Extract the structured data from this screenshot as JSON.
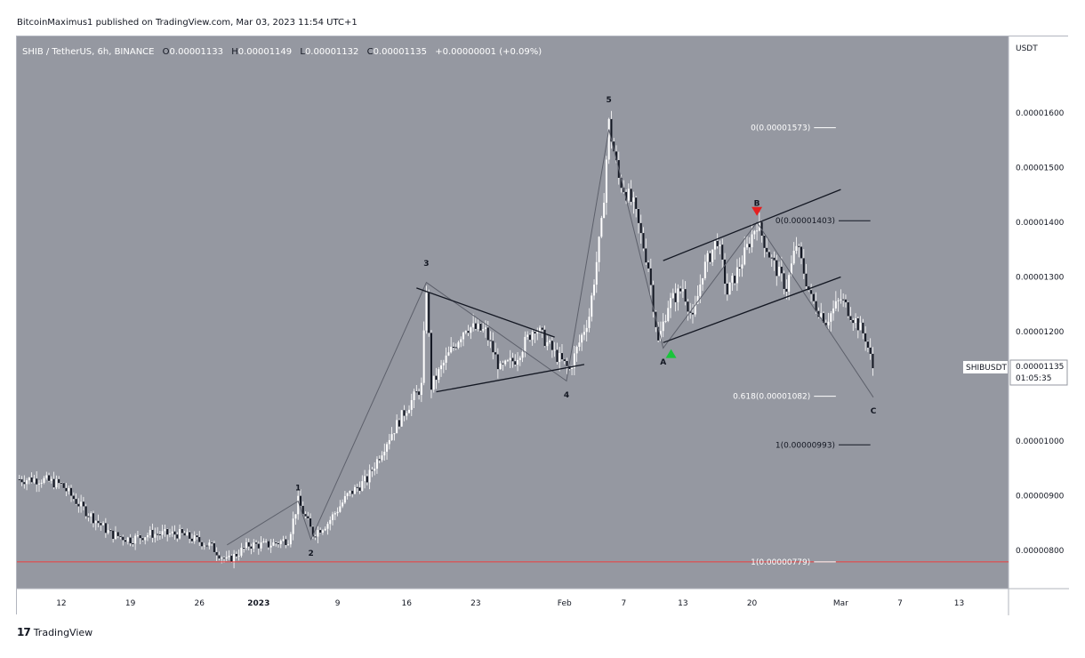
{
  "publisher_line": "BitcoinMaximus1 published on TradingView.com, Mar 03, 2023 11:54 UTC+1",
  "footer_brand": "TradingView",
  "colors": {
    "plot_bg": "#9598a1",
    "candle": "#ffffff",
    "trendline": "#131722",
    "wave_path": "#5d606b",
    "support": "#ef3d3d",
    "fib_line": "#ffffff",
    "up_arrow": "#19c43a",
    "down_arrow": "#e52020"
  },
  "chart_data": {
    "type": "candlestick",
    "symbol_header": {
      "pair": "SHIB / TetherUS, 6h, BINANCE",
      "o_label": "O",
      "o_value": "0.00001133",
      "h_label": "H",
      "h_value": "0.00001149",
      "l_label": "L",
      "l_value": "0.00001132",
      "c_label": "C",
      "c_value": "0.00001135",
      "change": "+0.00000001 (+0.09%)"
    },
    "y_axis": {
      "unit": "USDT",
      "range": [
        7.3e-06,
        1.74e-05
      ],
      "ticks": [
        {
          "value": 1.6e-05,
          "label": "0.00001600"
        },
        {
          "value": 1.5e-05,
          "label": "0.00001500"
        },
        {
          "value": 1.4e-05,
          "label": "0.00001400"
        },
        {
          "value": 1.3e-05,
          "label": "0.00001300"
        },
        {
          "value": 1.2e-05,
          "label": "0.00001200"
        },
        {
          "value": 1e-05,
          "label": "0.00001000"
        },
        {
          "value": 9e-06,
          "label": "0.00000900"
        },
        {
          "value": 8e-06,
          "label": "0.00000800"
        }
      ]
    },
    "x_axis": {
      "range_days": [
        -24.5,
        76
      ],
      "ticks": [
        {
          "day": -20,
          "label": "12"
        },
        {
          "day": -13,
          "label": "19"
        },
        {
          "day": -6,
          "label": "26"
        },
        {
          "day": 0,
          "label": "2023"
        },
        {
          "day": 8,
          "label": "9"
        },
        {
          "day": 15,
          "label": "16"
        },
        {
          "day": 22,
          "label": "23"
        },
        {
          "day": 31,
          "label": "Feb"
        },
        {
          "day": 37,
          "label": "7"
        },
        {
          "day": 43,
          "label": "13"
        },
        {
          "day": 50,
          "label": "20"
        },
        {
          "day": 59,
          "label": "Mar"
        },
        {
          "day": 65,
          "label": "7"
        },
        {
          "day": 71,
          "label": "13"
        }
      ]
    },
    "price_path": [
      [
        -24.5,
        9.3e-06
      ],
      [
        -22,
        9.3e-06
      ],
      [
        -20,
        9.2e-06
      ],
      [
        -18,
        8.8e-06
      ],
      [
        -15,
        8.3e-06
      ],
      [
        -13,
        8.2e-06
      ],
      [
        -11,
        8.3e-06
      ],
      [
        -8,
        8.3e-06
      ],
      [
        -5,
        8.1e-06
      ],
      [
        -3.2,
        7.8e-06
      ],
      [
        -1,
        8.1e-06
      ],
      [
        1,
        8.1e-06
      ],
      [
        3,
        8.2e-06
      ],
      [
        4,
        8.9e-06
      ],
      [
        5.5,
        8.3e-06
      ],
      [
        7,
        8.5e-06
      ],
      [
        9,
        9e-06
      ],
      [
        11,
        9.3e-06
      ],
      [
        13,
        1e-05
      ],
      [
        15,
        1.06e-05
      ],
      [
        16.5,
        1.1e-05
      ],
      [
        17,
        1.28e-05
      ],
      [
        17.5,
        1.1e-05
      ],
      [
        19,
        1.15e-05
      ],
      [
        21,
        1.21e-05
      ],
      [
        23,
        1.2e-05
      ],
      [
        24.5,
        1.13e-05
      ],
      [
        26,
        1.15e-05
      ],
      [
        28,
        1.21e-05
      ],
      [
        30,
        1.16e-05
      ],
      [
        31.5,
        1.13e-05
      ],
      [
        32.5,
        1.18e-05
      ],
      [
        33.5,
        1.23e-05
      ],
      [
        34.8,
        1.4e-05
      ],
      [
        35.5,
        1.58e-05
      ],
      [
        36.5,
        1.48e-05
      ],
      [
        38,
        1.43e-05
      ],
      [
        39.5,
        1.32e-05
      ],
      [
        40.5,
        1.18e-05
      ],
      [
        41.5,
        1.25e-05
      ],
      [
        43,
        1.28e-05
      ],
      [
        44,
        1.22e-05
      ],
      [
        45,
        1.31e-05
      ],
      [
        46.5,
        1.37e-05
      ],
      [
        47.5,
        1.27e-05
      ],
      [
        49,
        1.33e-05
      ],
      [
        50.5,
        1.4e-05
      ],
      [
        52,
        1.33e-05
      ],
      [
        53.5,
        1.28e-05
      ],
      [
        54.5,
        1.36e-05
      ],
      [
        56,
        1.26e-05
      ],
      [
        57.5,
        1.22e-05
      ],
      [
        59,
        1.26e-05
      ],
      [
        60.5,
        1.22e-05
      ],
      [
        61.5,
        1.19e-05
      ],
      [
        62.3,
        1.13e-05
      ]
    ],
    "series": [
      {
        "name": "SHIBUSDT",
        "last_value": "0.00001135",
        "countdown": "01:05:35"
      }
    ],
    "trendlines": [
      [
        [
          16,
          1.28e-05
        ],
        [
          30,
          1.19e-05
        ]
      ],
      [
        [
          18,
          1.09e-05
        ],
        [
          33,
          1.14e-05
        ]
      ],
      [
        [
          41,
          1.33e-05
        ],
        [
          59,
          1.46e-05
        ]
      ],
      [
        [
          41,
          1.18e-05
        ],
        [
          59,
          1.3e-05
        ]
      ]
    ],
    "wave_path": [
      [
        -3.2,
        8.1e-06
      ],
      [
        4,
        8.9e-06
      ],
      [
        5.3,
        8.2e-06
      ],
      [
        17,
        1.29e-05
      ],
      [
        31.2,
        1.11e-05
      ],
      [
        35.5,
        1.57e-05
      ],
      [
        41,
        1.17e-05
      ],
      [
        50.5,
        1.4e-05
      ],
      [
        62.3,
        1.08e-05
      ]
    ],
    "support_line": 7.79e-06,
    "fib_levels": [
      {
        "label": "0(0.00001573)",
        "value": 1.573e-05,
        "x0": 52.5,
        "x1": 58.5
      },
      {
        "label": "0(0.00001403)",
        "value": 1.403e-05,
        "x0": 55,
        "x1": 62
      },
      {
        "label": "0.618(0.00001082)",
        "value": 1.082e-05,
        "x0": 52.5,
        "x1": 58.5
      },
      {
        "label": "1(0.00000993)",
        "value": 9.93e-06,
        "x0": 55,
        "x1": 62
      },
      {
        "label": "1(0.00000779)",
        "value": 7.79e-06,
        "x0": 52.5,
        "x1": 58.5
      }
    ],
    "wave_labels": [
      {
        "text": "1",
        "x": 4,
        "y": 9.1e-06
      },
      {
        "text": "2",
        "x": 5.3,
        "y": 7.9e-06
      },
      {
        "text": "3",
        "x": 17,
        "y": 1.32e-05
      },
      {
        "text": "4",
        "x": 31.2,
        "y": 1.08e-05
      },
      {
        "text": "5",
        "x": 35.5,
        "y": 1.62e-05
      },
      {
        "text": "A",
        "x": 41,
        "y": 1.14e-05
      },
      {
        "text": "B",
        "x": 50.5,
        "y": 1.43e-05
      },
      {
        "text": "C",
        "x": 62.3,
        "y": 1.05e-05
      }
    ],
    "signals": [
      {
        "type": "buy",
        "x": 41.8,
        "y": 1.16e-05
      },
      {
        "type": "sell",
        "x": 50.5,
        "y": 1.42e-05
      }
    ]
  }
}
